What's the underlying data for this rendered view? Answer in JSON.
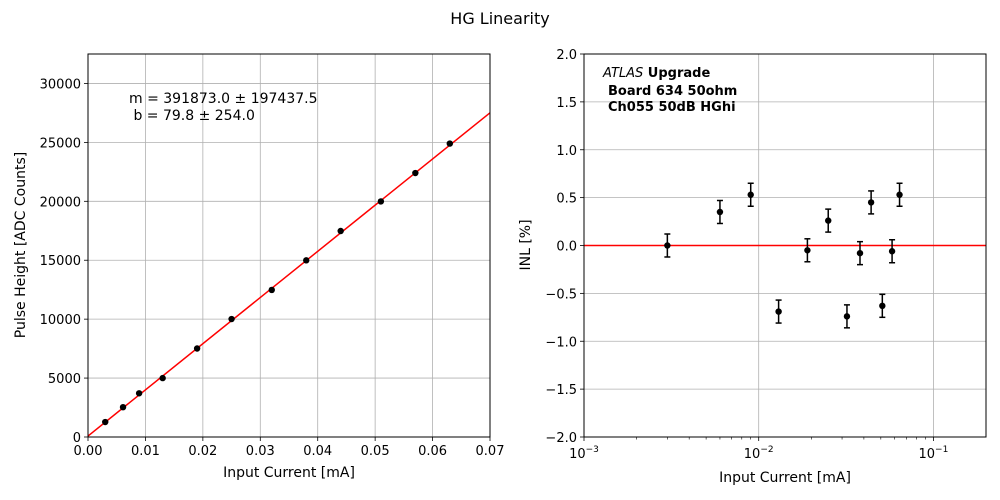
{
  "figure": {
    "title": "HG Linearity"
  },
  "chart_data": [
    {
      "type": "scatter",
      "xlabel": "Input Current [mA]",
      "ylabel": "Pulse Height [ADC Counts]",
      "xlim": [
        0,
        0.07
      ],
      "ylim": [
        0,
        32500
      ],
      "x_scale": "linear",
      "grid": true,
      "x_ticks": [
        0.0,
        0.01,
        0.02,
        0.03,
        0.04,
        0.05,
        0.06,
        0.07
      ],
      "x_tick_labels": [
        "0.00",
        "0.01",
        "0.02",
        "0.03",
        "0.04",
        "0.05",
        "0.06",
        "0.07"
      ],
      "y_ticks": [
        0,
        5000,
        10000,
        15000,
        20000,
        25000,
        30000
      ],
      "y_tick_labels": [
        "0",
        "5000",
        "10000",
        "15000",
        "20000",
        "25000",
        "30000"
      ],
      "points": {
        "x": [
          0.003,
          0.0061,
          0.0089,
          0.013,
          0.019,
          0.025,
          0.032,
          0.038,
          0.044,
          0.051,
          0.057,
          0.063
        ],
        "y": [
          1270,
          2530,
          3710,
          5000,
          7510,
          10010,
          12480,
          14990,
          17480,
          19990,
          22400,
          24900
        ]
      },
      "fit": {
        "m": 391873.0,
        "b": 79.8,
        "color": "#ff0000"
      },
      "annotation": {
        "line1": "m = 391873.0 ± 197437.5",
        "line2": " b = 79.8 ± 254.0"
      },
      "marker_color": "#000000"
    },
    {
      "type": "scatter",
      "xlabel": "Input Current [mA]",
      "ylabel": "INL [%]",
      "xlim": [
        0.001,
        0.2
      ],
      "ylim": [
        -2.0,
        2.0
      ],
      "x_scale": "log",
      "grid": true,
      "x_tick_labels": [
        {
          "value": 0.001,
          "base": "10",
          "exp": "−3"
        },
        {
          "value": 0.01,
          "base": "10",
          "exp": "−2"
        },
        {
          "value": 0.1,
          "base": "10",
          "exp": "−1"
        }
      ],
      "y_ticks": [
        -2.0,
        -1.5,
        -1.0,
        -0.5,
        0.0,
        0.5,
        1.0,
        1.5,
        2.0
      ],
      "y_tick_labels": [
        "−2.0",
        "−1.5",
        "−1.0",
        "−0.5",
        "0.0",
        "0.5",
        "1.0",
        "1.5",
        "2.0"
      ],
      "points": {
        "x": [
          0.003,
          0.006,
          0.009,
          0.013,
          0.019,
          0.025,
          0.032,
          0.038,
          0.044,
          0.051,
          0.058,
          0.064
        ],
        "y": [
          0.0,
          0.35,
          0.53,
          -0.69,
          -0.05,
          0.26,
          -0.74,
          -0.08,
          0.45,
          -0.63,
          -0.06,
          0.53
        ],
        "yerr": [
          0.12,
          0.12,
          0.12,
          0.12,
          0.12,
          0.12,
          0.12,
          0.12,
          0.12,
          0.12,
          0.12,
          0.12
        ]
      },
      "reference_line": {
        "y": 0.0,
        "color": "#ff0000"
      },
      "label": {
        "atlas": "ATLAS",
        "upgrade": " Upgrade",
        "board": "Board 634 50ohm",
        "channel": "Ch055 50dB HGhi"
      },
      "marker_color": "#000000"
    }
  ]
}
